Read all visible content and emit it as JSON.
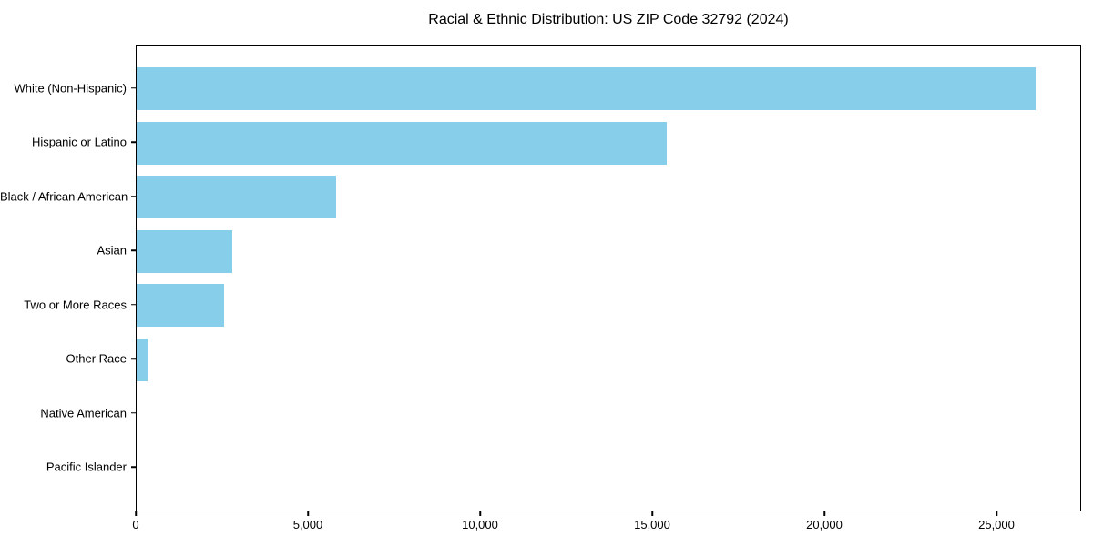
{
  "chart_data": {
    "type": "bar",
    "orientation": "horizontal",
    "title": "Racial & Ethnic Distribution: US ZIP Code 32792 (2024)",
    "categories": [
      "White (Non-Hispanic)",
      "Hispanic or Latino",
      "Black / African American",
      "Asian",
      "Two or More Races",
      "Other Race",
      "Native American",
      "Pacific Islander"
    ],
    "values": [
      26100,
      15400,
      5800,
      2780,
      2540,
      320,
      0,
      0
    ],
    "xlabel": "",
    "ylabel": "",
    "xlim": [
      0,
      27460
    ],
    "x_ticks": [
      0,
      5000,
      10000,
      15000,
      20000,
      25000
    ],
    "x_tick_labels": [
      "0",
      "5,000",
      "10,000",
      "15,000",
      "20,000",
      "25,000"
    ],
    "bar_color": "#87CEEB",
    "text_color": "#000000",
    "grid": false,
    "legend_position": "none"
  }
}
